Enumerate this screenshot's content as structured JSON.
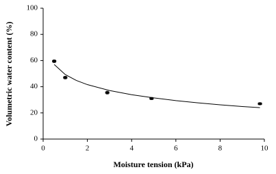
{
  "chart_data": {
    "type": "scatter",
    "x_label": "Moisture tension (kPa)",
    "y_label": "Volumetric water content (%)",
    "xlim": [
      0,
      10
    ],
    "xticks": [
      0,
      2,
      4,
      6,
      8,
      10
    ],
    "ylim": [
      0,
      100
    ],
    "yticks": [
      0,
      20,
      40,
      60,
      80,
      100
    ],
    "series": [
      {
        "color": "#000000",
        "x": [
          0.5,
          1,
          2.9,
          4.9,
          9.8
        ],
        "values": [
          59.5,
          47,
          35.5,
          31,
          27
        ],
        "errors": [
          1,
          1,
          1,
          0.8,
          0.8
        ]
      },
      {
        "type": "line",
        "color": "#000000",
        "x": [
          0.5,
          1,
          1.5,
          2,
          3,
          4,
          5,
          6,
          7,
          8,
          9,
          9.8
        ],
        "values": [
          57.0,
          49.3,
          44.8,
          41.6,
          37.1,
          33.9,
          31.5,
          29.4,
          27.7,
          26.2,
          24.9,
          24.0
        ]
      }
    ]
  }
}
